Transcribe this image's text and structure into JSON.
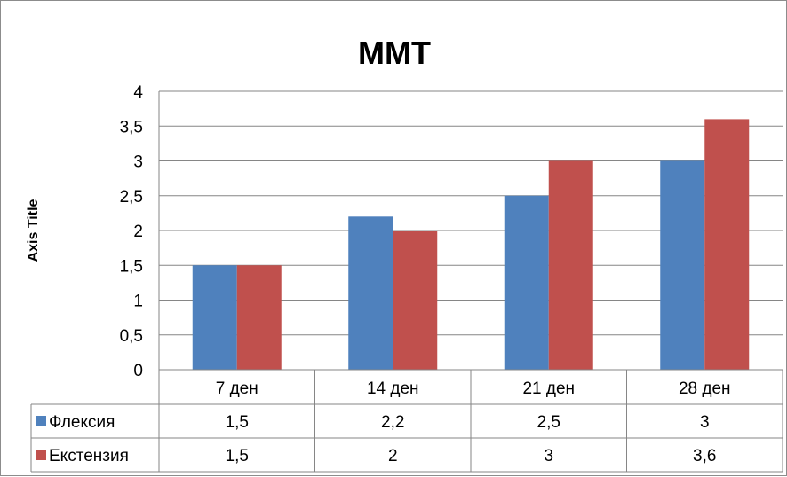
{
  "chart_data": {
    "type": "bar",
    "title": "ММТ",
    "xlabel": "",
    "ylabel": "Axis Title",
    "categories": [
      "7 ден",
      "14 ден",
      "21 ден",
      "28 ден"
    ],
    "series": [
      {
        "name": "Флексия",
        "values": [
          1.5,
          2.2,
          2.5,
          3
        ],
        "labels": [
          "1,5",
          "2,2",
          "2,5",
          "3"
        ],
        "color": "#4f81bd"
      },
      {
        "name": "Екстензия",
        "values": [
          1.5,
          2,
          3,
          3.6
        ],
        "labels": [
          "1,5",
          "2",
          "3",
          "3,6"
        ],
        "color": "#c0504d"
      }
    ],
    "ylim": [
      0,
      4
    ],
    "yticks": [
      "0",
      "0,5",
      "1",
      "1,5",
      "2",
      "2,5",
      "3",
      "3,5",
      "4"
    ],
    "yticks_values": [
      0,
      0.5,
      1,
      1.5,
      2,
      2.5,
      3,
      3.5,
      4
    ],
    "grid": true,
    "legend": "data-table"
  }
}
